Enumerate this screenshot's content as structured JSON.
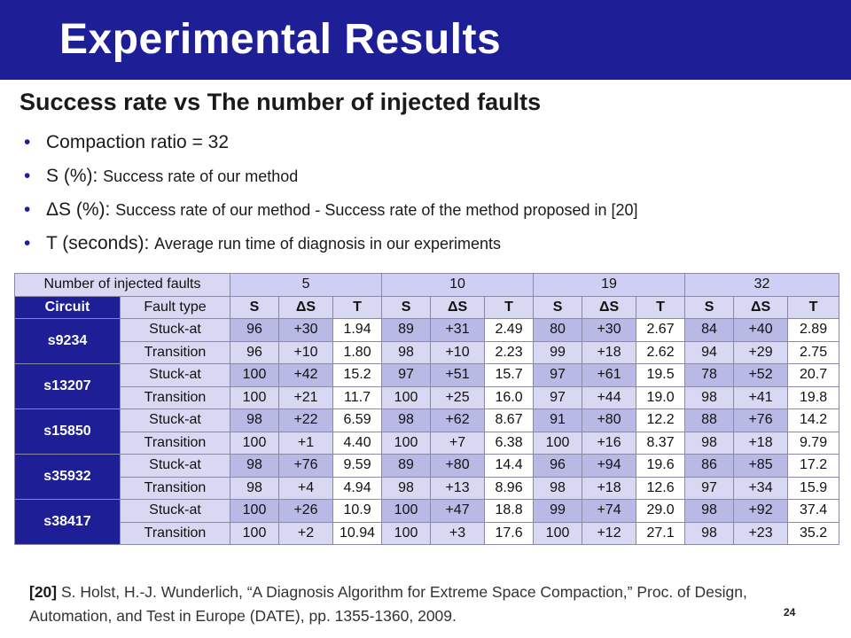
{
  "slide": {
    "title": "Experimental Results",
    "subtitle": "Success rate vs The number of injected faults",
    "bullets": [
      {
        "main": "Compaction ratio = 32",
        "detail": ""
      },
      {
        "main": "S (%): ",
        "detail": "Success rate of our method"
      },
      {
        "main": "ΔS (%): ",
        "detail": "Success rate of our method - Success rate of the method proposed in [20]"
      },
      {
        "main": "T (seconds): ",
        "detail": "Average run time of diagnosis in our experiments"
      }
    ],
    "reference": {
      "tag": "[20]",
      "text": " S. Holst, H.-J. Wunderlich, “A Diagnosis Algorithm for Extreme Space Compaction,” Proc. of Design, Automation, and Test in Europe (DATE), pp. 1355-1360, 2009."
    },
    "page_number": "24"
  },
  "table": {
    "header_label": "Number of injected faults",
    "fault_counts": [
      "5",
      "10",
      "19",
      "32"
    ],
    "circuit_header": "Circuit",
    "fault_type_header": "Fault type",
    "sub_headers": [
      "S",
      "ΔS",
      "T"
    ],
    "rows": [
      {
        "circuit": "s9234",
        "type": "Stuck-at",
        "values": [
          "96",
          "+30",
          "1.94",
          "89",
          "+31",
          "2.49",
          "80",
          "+30",
          "2.67",
          "84",
          "+40",
          "2.89"
        ]
      },
      {
        "circuit": "s9234",
        "type": "Transition",
        "values": [
          "96",
          "+10",
          "1.80",
          "98",
          "+10",
          "2.23",
          "99",
          "+18",
          "2.62",
          "94",
          "+29",
          "2.75"
        ]
      },
      {
        "circuit": "s13207",
        "type": "Stuck-at",
        "values": [
          "100",
          "+42",
          "15.2",
          "97",
          "+51",
          "15.7",
          "97",
          "+61",
          "19.5",
          "78",
          "+52",
          "20.7"
        ]
      },
      {
        "circuit": "s13207",
        "type": "Transition",
        "values": [
          "100",
          "+21",
          "11.7",
          "100",
          "+25",
          "16.0",
          "97",
          "+44",
          "19.0",
          "98",
          "+41",
          "19.8"
        ]
      },
      {
        "circuit": "s15850",
        "type": "Stuck-at",
        "values": [
          "98",
          "+22",
          "6.59",
          "98",
          "+62",
          "8.67",
          "91",
          "+80",
          "12.2",
          "88",
          "+76",
          "14.2"
        ]
      },
      {
        "circuit": "s15850",
        "type": "Transition",
        "values": [
          "100",
          "+1",
          "4.40",
          "100",
          "+7",
          "6.38",
          "100",
          "+16",
          "8.37",
          "98",
          "+18",
          "9.79"
        ]
      },
      {
        "circuit": "s35932",
        "type": "Stuck-at",
        "values": [
          "98",
          "+76",
          "9.59",
          "89",
          "+80",
          "14.4",
          "96",
          "+94",
          "19.6",
          "86",
          "+85",
          "17.2"
        ]
      },
      {
        "circuit": "s35932",
        "type": "Transition",
        "values": [
          "98",
          "+4",
          "4.94",
          "98",
          "+13",
          "8.96",
          "98",
          "+18",
          "12.6",
          "97",
          "+34",
          "15.9"
        ]
      },
      {
        "circuit": "s38417",
        "type": "Stuck-at",
        "values": [
          "100",
          "+26",
          "10.9",
          "100",
          "+47",
          "18.8",
          "99",
          "+74",
          "29.0",
          "98",
          "+92",
          "37.4"
        ]
      },
      {
        "circuit": "s38417",
        "type": "Transition",
        "values": [
          "100",
          "+2",
          "10.94",
          "100",
          "+3",
          "17.6",
          "100",
          "+12",
          "27.1",
          "98",
          "+23",
          "35.2"
        ]
      }
    ]
  }
}
